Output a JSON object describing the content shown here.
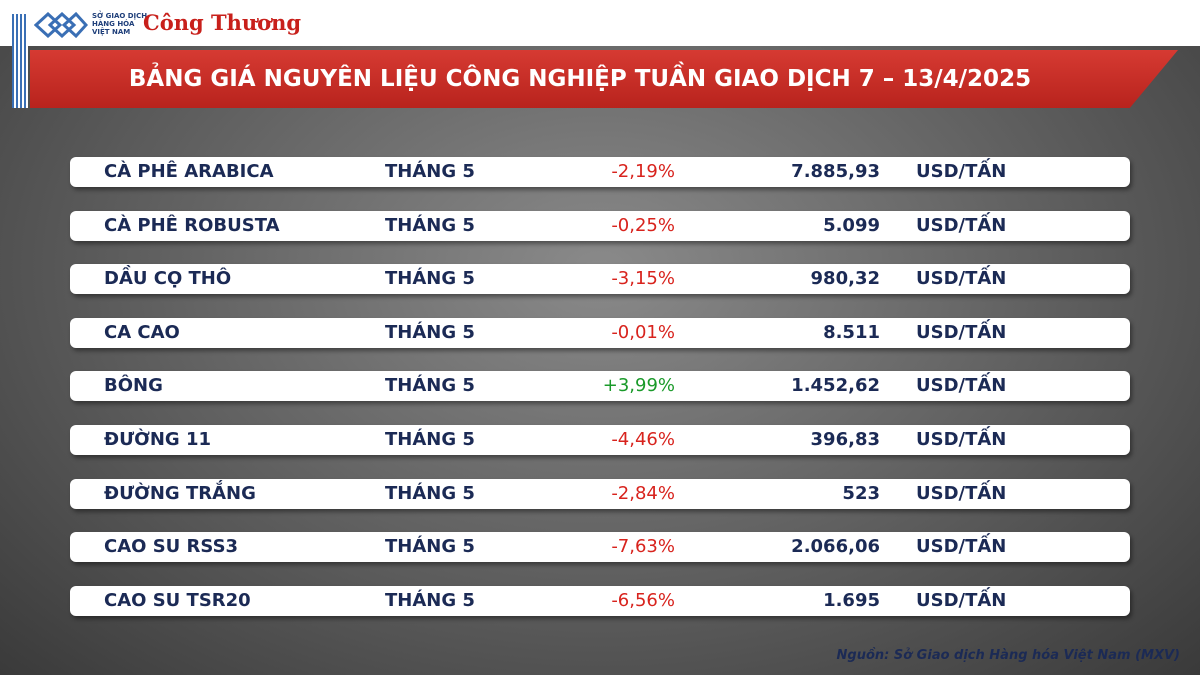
{
  "header": {
    "logo_lines": [
      "SỞ GIAO DỊCH",
      "HÀNG HÓA",
      "VIỆT NAM"
    ],
    "brand": "Công Thương",
    "title": "BẢNG GIÁ NGUYÊN LIỆU CÔNG NGHIỆP TUẦN GIAO DỊCH 7 – 13/4/2025"
  },
  "table": {
    "rows": [
      [
        "CÀ PHÊ ARABICA",
        "THÁNG 5",
        "-2,19%",
        "7.885,93",
        "USD/TẤN"
      ],
      [
        "CÀ PHÊ ROBUSTA",
        "THÁNG 5",
        "-0,25%",
        "5.099",
        "USD/TẤN"
      ],
      [
        "DẦU CỌ THÔ",
        "THÁNG 5",
        "-3,15%",
        "980,32",
        "USD/TẤN"
      ],
      [
        "CA CAO",
        "THÁNG 5",
        "-0,01%",
        "8.511",
        "USD/TẤN"
      ],
      [
        "BÔNG",
        "THÁNG 5",
        "+3,99%",
        "1.452,62",
        "USD/TẤN"
      ],
      [
        "ĐƯỜNG 11",
        "THÁNG 5",
        "-4,46%",
        "396,83",
        "USD/TẤN"
      ],
      [
        "ĐƯỜNG TRẮNG",
        "THÁNG 5",
        "-2,84%",
        "523",
        "USD/TẤN"
      ],
      [
        "CAO SU RSS3",
        "THÁNG 5",
        "-7,63%",
        "2.066,06",
        "USD/TẤN"
      ],
      [
        "CAO SU TSR20",
        "THÁNG 5",
        "-6,56%",
        "1.695",
        "USD/TẤN"
      ]
    ]
  },
  "footer": {
    "source": "Nguồn: Sở Giao dịch Hàng hóa Việt Nam (MXV)"
  }
}
